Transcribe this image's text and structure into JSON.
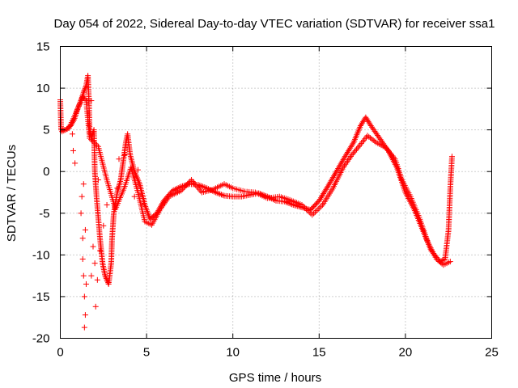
{
  "chart_data": {
    "type": "scatter",
    "title": "Day 054 of 2022, Sidereal Day-to-day VTEC variation (SDTVAR) for receiver ssa1",
    "xlabel": "GPS time / hours",
    "ylabel": "SDTVAR / TECUs",
    "xlim": [
      0,
      25
    ],
    "ylim": [
      -20,
      15
    ],
    "xticks": [
      0,
      5,
      10,
      15,
      20,
      25
    ],
    "yticks": [
      -20,
      -15,
      -10,
      -5,
      0,
      5,
      10,
      15
    ],
    "grid": true,
    "marker": "+",
    "series": [
      {
        "name": "SDTVAR",
        "color": "#ff0000",
        "trace": [
          [
            0.0,
            8.6
          ],
          [
            0.05,
            5.0
          ],
          [
            0.3,
            5.0
          ],
          [
            0.6,
            5.5
          ],
          [
            0.8,
            6.2
          ],
          [
            1.0,
            7.5
          ],
          [
            1.2,
            8.5
          ],
          [
            1.35,
            9.5
          ],
          [
            1.5,
            10.3
          ],
          [
            1.6,
            11.5
          ],
          [
            1.65,
            9.0
          ],
          [
            1.7,
            5.0
          ],
          [
            1.8,
            4.0
          ],
          [
            1.95,
            5.0
          ],
          [
            2.0,
            0.0
          ],
          [
            2.1,
            -3.0
          ],
          [
            2.3,
            -8.0
          ],
          [
            2.45,
            -11.0
          ],
          [
            2.6,
            -12.5
          ],
          [
            2.8,
            -13.5
          ],
          [
            2.95,
            -11.0
          ],
          [
            3.0,
            -8.0
          ],
          [
            3.1,
            -5.0
          ],
          [
            3.3,
            -2.5
          ],
          [
            3.5,
            -1.0
          ],
          [
            3.6,
            0.5
          ],
          [
            3.8,
            3.5
          ],
          [
            3.9,
            4.5
          ],
          [
            4.05,
            2.0
          ],
          [
            4.3,
            0.0
          ],
          [
            4.6,
            -1.5
          ],
          [
            4.9,
            -4.0
          ],
          [
            5.2,
            -5.7
          ],
          [
            5.6,
            -5.0
          ],
          [
            6.0,
            -3.5
          ],
          [
            6.5,
            -2.3
          ],
          [
            7.0,
            -1.8
          ],
          [
            7.5,
            -1.5
          ],
          [
            8.0,
            -1.6
          ],
          [
            8.5,
            -2.0
          ],
          [
            9.0,
            -2.5
          ],
          [
            9.5,
            -2.9
          ],
          [
            10.0,
            -3.0
          ],
          [
            10.5,
            -3.0
          ],
          [
            11.0,
            -2.8
          ],
          [
            11.5,
            -2.6
          ],
          [
            12.0,
            -3.0
          ],
          [
            12.5,
            -3.5
          ],
          [
            13.0,
            -3.6
          ],
          [
            13.5,
            -4.0
          ],
          [
            14.0,
            -4.3
          ],
          [
            14.5,
            -4.6
          ],
          [
            15.0,
            -3.5
          ],
          [
            15.5,
            -1.8
          ],
          [
            16.0,
            0.0
          ],
          [
            16.5,
            1.8
          ],
          [
            17.0,
            3.5
          ],
          [
            17.4,
            5.5
          ],
          [
            17.7,
            6.5
          ],
          [
            18.0,
            5.5
          ],
          [
            18.5,
            4.0
          ],
          [
            19.0,
            2.5
          ],
          [
            19.5,
            0.5
          ],
          [
            20.0,
            -2.5
          ],
          [
            20.5,
            -4.5
          ],
          [
            21.0,
            -7.0
          ],
          [
            21.5,
            -9.5
          ],
          [
            22.0,
            -10.8
          ],
          [
            22.3,
            -10.5
          ],
          [
            22.5,
            -7.0
          ],
          [
            22.6,
            -2.0
          ],
          [
            22.7,
            1.8
          ]
        ],
        "trace_b": [
          [
            0.1,
            4.8
          ],
          [
            0.5,
            5.2
          ],
          [
            0.9,
            7.0
          ],
          [
            1.3,
            9.0
          ],
          [
            1.5,
            8.5
          ],
          [
            1.7,
            4.0
          ],
          [
            2.2,
            3.0
          ],
          [
            2.7,
            -1.0
          ],
          [
            3.2,
            -4.5
          ],
          [
            3.7,
            -2.0
          ],
          [
            4.1,
            0.5
          ],
          [
            4.5,
            -2.5
          ],
          [
            4.9,
            -6.0
          ],
          [
            5.3,
            -6.4
          ],
          [
            5.8,
            -4.5
          ],
          [
            6.3,
            -3.0
          ],
          [
            7.0,
            -2.3
          ],
          [
            7.6,
            -1.0
          ],
          [
            8.2,
            -2.5
          ],
          [
            8.8,
            -2.2
          ],
          [
            9.5,
            -1.5
          ],
          [
            10.0,
            -2.0
          ],
          [
            10.7,
            -2.4
          ],
          [
            11.3,
            -2.5
          ],
          [
            12.0,
            -3.2
          ],
          [
            12.7,
            -3.0
          ],
          [
            13.3,
            -3.4
          ],
          [
            14.0,
            -4.0
          ],
          [
            14.6,
            -5.2
          ],
          [
            15.2,
            -4.0
          ],
          [
            15.8,
            -2.0
          ],
          [
            16.4,
            0.5
          ],
          [
            16.9,
            2.0
          ],
          [
            17.3,
            3.0
          ],
          [
            17.8,
            4.3
          ],
          [
            18.3,
            3.5
          ],
          [
            18.9,
            2.8
          ],
          [
            19.4,
            1.5
          ],
          [
            19.8,
            -1.0
          ],
          [
            20.3,
            -3.0
          ],
          [
            20.8,
            -5.5
          ],
          [
            21.3,
            -8.5
          ],
          [
            21.8,
            -10.5
          ],
          [
            22.2,
            -11.2
          ],
          [
            22.6,
            -10.8
          ]
        ],
        "scattered": [
          [
            0.0,
            8.6
          ],
          [
            0.7,
            4.5
          ],
          [
            0.75,
            2.5
          ],
          [
            0.85,
            1.0
          ],
          [
            1.2,
            -5.0
          ],
          [
            1.3,
            -10.5
          ],
          [
            1.35,
            -12.5
          ],
          [
            1.4,
            -15.0
          ],
          [
            1.45,
            -17.2
          ],
          [
            1.4,
            -18.7
          ],
          [
            1.3,
            -8.0
          ],
          [
            1.25,
            -3.0
          ],
          [
            1.35,
            -1.5
          ],
          [
            1.45,
            -7.0
          ],
          [
            1.5,
            -13.5
          ],
          [
            1.8,
            -12.5
          ],
          [
            1.9,
            -9.0
          ],
          [
            2.0,
            -11.0
          ],
          [
            2.05,
            -16.2
          ],
          [
            2.15,
            -13.0
          ],
          [
            2.3,
            -9.5
          ],
          [
            2.5,
            -6.5
          ],
          [
            2.2,
            -1.0
          ],
          [
            2.7,
            -4.0
          ],
          [
            3.3,
            -2.0
          ],
          [
            3.4,
            1.5
          ],
          [
            3.75,
            2.0
          ],
          [
            4.3,
            -3.0
          ],
          [
            4.5,
            0.2
          ],
          [
            1.8,
            8.5
          ],
          [
            1.75,
            5.0
          ]
        ]
      }
    ]
  }
}
